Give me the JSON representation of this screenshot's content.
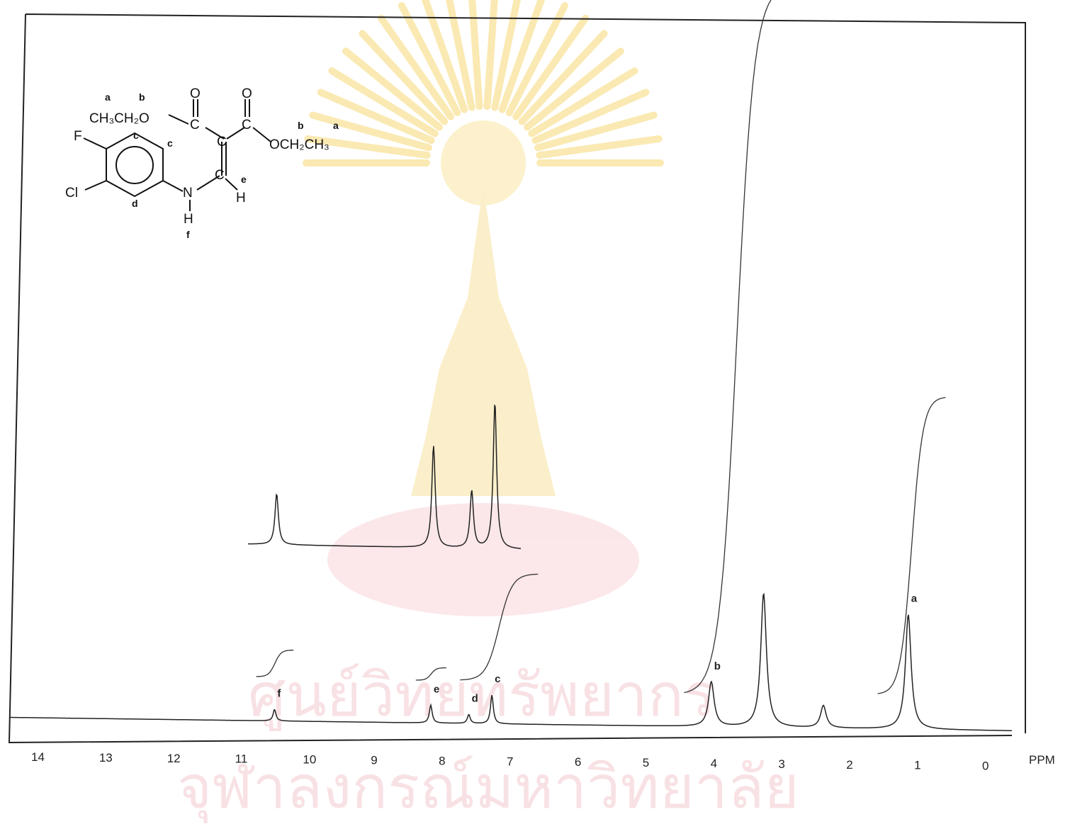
{
  "chart_data": {
    "type": "line",
    "xlabel": "PPM",
    "xlim": [
      14,
      0
    ],
    "x_reversed": true,
    "ticks": [
      "14",
      "13",
      "12",
      "11",
      "10",
      "9",
      "8",
      "7",
      "6",
      "5",
      "4",
      "3",
      "2",
      "1",
      "0"
    ],
    "peaks": [
      {
        "label": "f",
        "ppm": 10.48,
        "height": 0.018
      },
      {
        "label": "e",
        "ppm": 8.18,
        "height": 0.028
      },
      {
        "label": "d",
        "ppm": 7.62,
        "height": 0.014
      },
      {
        "label": "c",
        "ppm": 7.28,
        "height": 0.045
      },
      {
        "label": "b",
        "ppm": 4.05,
        "height": 0.07
      },
      {
        "label": "",
        "ppm": 3.28,
        "height": 0.21
      },
      {
        "label": "",
        "ppm": 2.4,
        "height": 0.035
      },
      {
        "label": "a",
        "ppm": 1.15,
        "height": 0.18
      }
    ],
    "expansion": {
      "xlim": [
        10.9,
        6.9
      ],
      "peaks": [
        {
          "ppm": 10.48,
          "height": 0.08
        },
        {
          "ppm": 8.18,
          "height": 0.16
        },
        {
          "ppm": 7.62,
          "height": 0.09
        },
        {
          "ppm": 7.28,
          "height": 0.23
        }
      ]
    },
    "integrals": [
      {
        "from": 10.75,
        "to": 10.2
      },
      {
        "from": 8.4,
        "to": 7.95
      },
      {
        "from": 7.75,
        "to": 6.6
      },
      {
        "from": 4.45,
        "to": 2.9
      },
      {
        "from": 1.6,
        "to": 0.6
      }
    ]
  },
  "structure": {
    "labels": {
      "a1": "a",
      "b1": "b",
      "ch3ch2o": "CH₃CH₂O",
      "o1": "O",
      "o2": "O",
      "c1": "C",
      "c2": "C",
      "c3": "C",
      "c4": "C",
      "och2ch3": "OCH₂CH₃",
      "b2": "b",
      "a2": "a",
      "f_atom": "F",
      "cl_atom": "Cl",
      "n_atom": "N",
      "h_n": "H",
      "f_lbl": "f",
      "h_e": "H",
      "e_lbl": "e",
      "c_lbl1": "c",
      "c_lbl2": "c",
      "d_lbl": "d"
    }
  },
  "watermark": {
    "text": "ศูนย์วิทยทรัพยากร",
    "text2": "จุฬาลงกรณ์มหาวิทยาลัย"
  }
}
